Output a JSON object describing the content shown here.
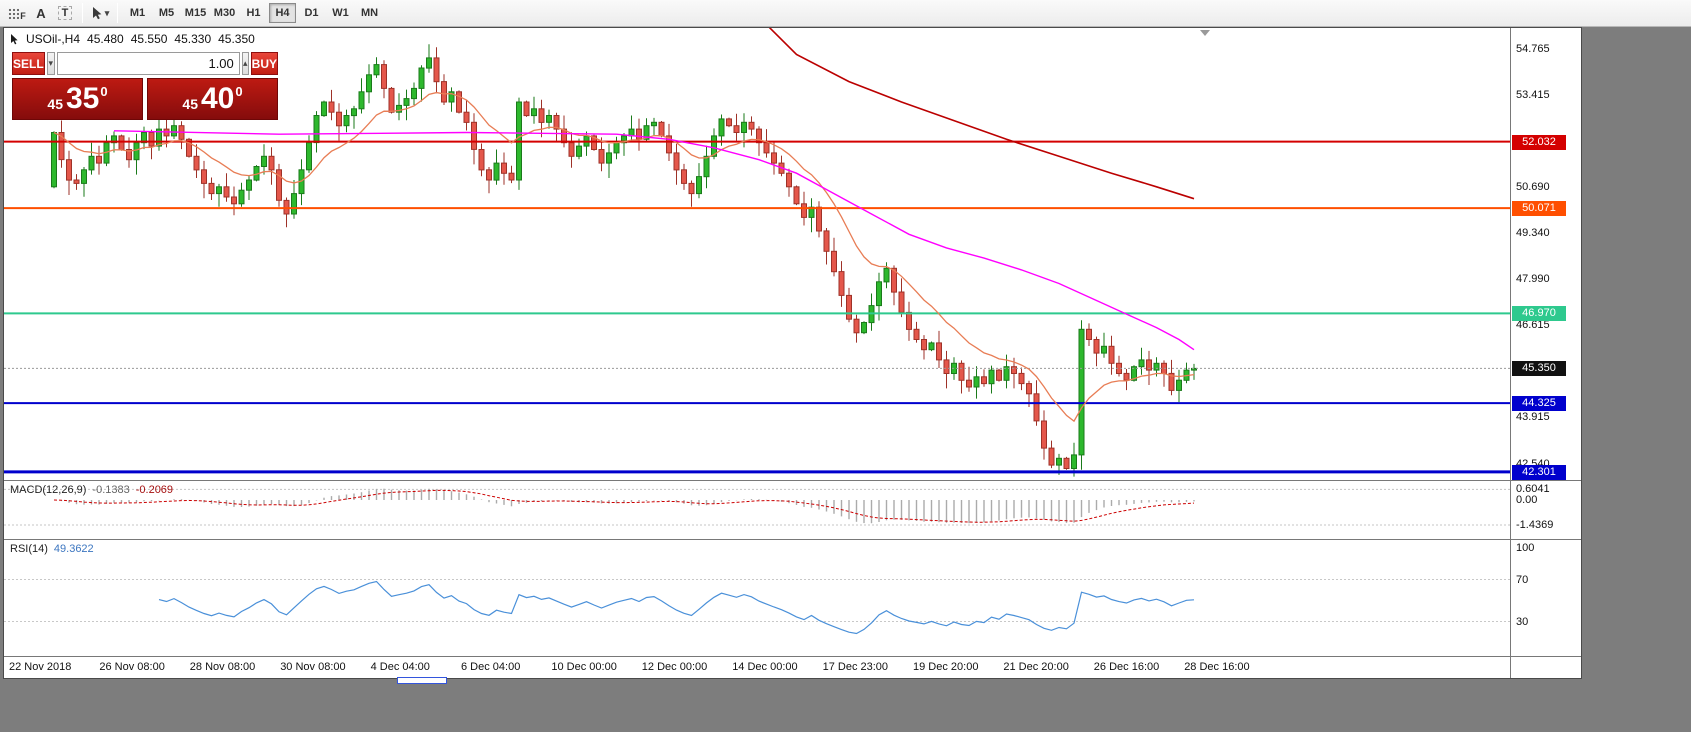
{
  "toolbar": {
    "tool_fib": "F",
    "tool_text": "A",
    "tool_label": "T",
    "timeframes": [
      "M1",
      "M5",
      "M15",
      "M30",
      "H1",
      "H4",
      "D1",
      "W1",
      "MN"
    ],
    "active_timeframe": "H4"
  },
  "icons": {
    "caret_down": "▾",
    "caret_up": "▴"
  },
  "chart_header": {
    "symbol_period": "USOil-,H4",
    "open": "45.480",
    "high": "45.550",
    "low": "45.330",
    "close": "45.350"
  },
  "trade_panel": {
    "sell_label": "SELL",
    "buy_label": "BUY",
    "volume": "1.00",
    "sell_price": {
      "whole": "45",
      "pips": "35",
      "sup": "0"
    },
    "buy_price": {
      "whole": "45",
      "pips": "40",
      "sup": "0"
    }
  },
  "chart_data": {
    "type": "candlestick",
    "symbol": "USOil",
    "period": "H4",
    "price_max": 55.38,
    "price_min": 42.06,
    "open_first": 50.7,
    "closes": [
      52.3,
      51.5,
      50.9,
      50.8,
      51.2,
      51.6,
      51.4,
      52.0,
      52.2,
      51.8,
      51.5,
      52.0,
      52.3,
      51.9,
      52.4,
      52.2,
      52.5,
      52.1,
      51.6,
      51.2,
      50.8,
      50.5,
      50.7,
      50.4,
      50.2,
      50.6,
      50.9,
      51.3,
      51.6,
      51.2,
      50.3,
      49.9,
      50.5,
      51.2,
      52.0,
      52.8,
      53.2,
      52.9,
      52.5,
      52.8,
      53.0,
      53.5,
      54.0,
      54.3,
      53.6,
      52.9,
      53.1,
      53.3,
      53.6,
      54.2,
      54.5,
      53.8,
      53.2,
      53.5,
      52.9,
      52.6,
      51.8,
      51.2,
      50.9,
      51.4,
      51.1,
      50.9,
      53.2,
      52.8,
      53.0,
      52.6,
      52.8,
      52.4,
      52.0,
      51.6,
      51.9,
      52.2,
      51.8,
      51.4,
      51.7,
      52.0,
      52.2,
      52.4,
      52.1,
      52.5,
      52.6,
      52.2,
      51.7,
      51.2,
      50.8,
      50.5,
      51.0,
      51.6,
      52.2,
      52.7,
      52.5,
      52.3,
      52.6,
      52.4,
      52.0,
      51.7,
      51.4,
      51.1,
      50.7,
      50.2,
      49.8,
      50.1,
      49.4,
      48.8,
      48.2,
      47.5,
      46.8,
      46.4,
      46.7,
      47.2,
      47.9,
      48.3,
      47.6,
      47.0,
      46.5,
      46.2,
      45.9,
      46.1,
      45.6,
      45.2,
      45.5,
      45.0,
      44.8,
      45.1,
      44.9,
      45.3,
      45.0,
      45.4,
      45.2,
      44.9,
      44.6,
      43.8,
      43.0,
      42.5,
      42.7,
      42.4,
      42.8,
      46.5,
      46.2,
      45.8,
      46.0,
      45.5,
      45.2,
      45.0,
      45.4,
      45.6,
      45.3,
      45.5,
      45.2,
      44.7,
      45.0,
      45.3,
      45.35
    ],
    "colors": {
      "up_fill": "#2db82d",
      "up_stroke": "#1a7a1a",
      "down_fill": "#e4574b",
      "down_stroke": "#9e3228"
    },
    "hlines": [
      {
        "price": 52.032,
        "label": "52.032",
        "color": "#d40000",
        "width": 2
      },
      {
        "price": 50.071,
        "label": "50.071",
        "color": "#ff4f00",
        "width": 2
      },
      {
        "price": 46.97,
        "label": "46.970",
        "color": "#2ec98e",
        "width": 2
      },
      {
        "price": 44.325,
        "label": "44.325",
        "color": "#0000cd",
        "width": 2
      },
      {
        "price": 42.301,
        "label": "42.301",
        "color": "#0000cd",
        "width": 3
      }
    ],
    "current_price": {
      "value": 45.35,
      "label": "45.350",
      "color": "#111111"
    },
    "price_axis_ticks": [
      {
        "value": 54.765,
        "label": "54.765"
      },
      {
        "value": 53.415,
        "label": "53.415"
      },
      {
        "value": 50.69,
        "label": "50.690"
      },
      {
        "value": 49.34,
        "label": "49.340"
      },
      {
        "value": 47.99,
        "label": "47.990"
      },
      {
        "value": 46.615,
        "label": "46.615"
      },
      {
        "value": 43.915,
        "label": "43.915"
      },
      {
        "value": 42.54,
        "label": "42.540"
      }
    ],
    "overlays": {
      "ma_orange_period": 13,
      "ma_orange_color": "#e87d55",
      "ma_magenta": {
        "color": "#ff00ff",
        "points": [
          [
            8,
            52.35
          ],
          [
            30,
            52.25
          ],
          [
            55,
            52.3
          ],
          [
            75,
            52.25
          ],
          [
            82,
            52.1
          ],
          [
            88,
            51.85
          ],
          [
            94,
            51.5
          ],
          [
            99,
            51.1
          ],
          [
            104,
            50.5
          ],
          [
            109,
            49.9
          ],
          [
            114,
            49.3
          ],
          [
            119,
            48.9
          ],
          [
            124,
            48.6
          ],
          [
            129,
            48.25
          ],
          [
            134,
            47.85
          ],
          [
            139,
            47.35
          ],
          [
            143,
            46.95
          ],
          [
            147,
            46.55
          ],
          [
            150,
            46.2
          ],
          [
            152,
            45.9
          ]
        ]
      },
      "ma_red": {
        "color": "#bb0000",
        "points": [
          [
            94,
            55.7
          ],
          [
            99,
            54.6
          ],
          [
            106,
            53.8
          ],
          [
            113,
            53.2
          ],
          [
            120,
            52.65
          ],
          [
            127,
            52.1
          ],
          [
            134,
            51.6
          ],
          [
            141,
            51.1
          ],
          [
            147,
            50.7
          ],
          [
            152,
            50.35
          ]
        ]
      }
    },
    "macd": {
      "label": "MACD(12,26,9)",
      "values": [
        "-0.1383",
        "-0.2069"
      ],
      "max": 0.8,
      "min": -1.95,
      "levels": [
        0.6041,
        -1.4369
      ],
      "hist_color": "#ababab",
      "signal_color": "#cc0000",
      "axis": [
        {
          "value": 0.6041,
          "label": "0.6041"
        },
        {
          "value": 0.0,
          "label": "0.00"
        },
        {
          "value": -1.4369,
          "label": "-1.4369"
        }
      ]
    },
    "rsi": {
      "label": "RSI(14)",
      "value": "49.3622",
      "color": "#4a90d9",
      "levels": [
        70,
        30
      ],
      "axis": [
        {
          "value": 100,
          "label": "100"
        },
        {
          "value": 70,
          "label": "70"
        },
        {
          "value": 30,
          "label": "30"
        }
      ]
    },
    "x_labels": [
      "22 Nov 2018",
      "26 Nov 08:00",
      "28 Nov 08:00",
      "30 Nov 08:00",
      "4 Dec 04:00",
      "6 Dec 04:00",
      "10 Dec 00:00",
      "12 Dec 00:00",
      "14 Dec 00:00",
      "17 Dec 23:00",
      "19 Dec 20:00",
      "21 Dec 20:00",
      "26 Dec 16:00",
      "28 Dec 16:00"
    ]
  }
}
